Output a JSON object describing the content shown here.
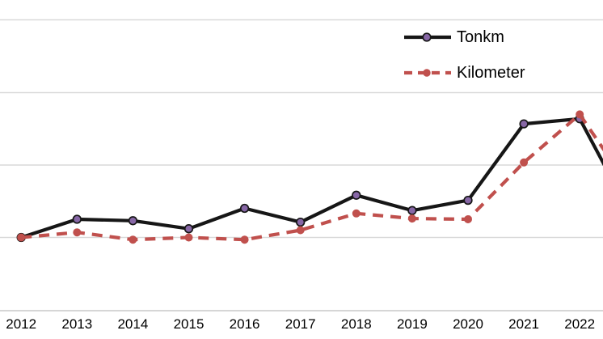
{
  "chart_data": {
    "type": "line",
    "title": "",
    "categories": [
      "2012",
      "2013",
      "2014",
      "2015",
      "2016",
      "2017",
      "2018",
      "2019",
      "2020",
      "2021",
      "2022"
    ],
    "y_axis": {
      "labels_visible": false,
      "unit_note": "index estimated from gridlines, 2012 = 100, one gridline step = 10",
      "ylim": [
        90,
        133.5
      ],
      "gridline_values": [
        100,
        110,
        120,
        130
      ]
    },
    "series": [
      {
        "name": "Tonkm",
        "line_style": "solid",
        "color": "#161616",
        "marker": "circle",
        "marker_color": "#8767a6",
        "marker_edge_color": "#161616",
        "values": [
          100,
          102.5,
          102.3,
          101.2,
          104.0,
          102.1,
          105.8,
          103.7,
          105.1,
          115.6,
          116.3
        ],
        "clipped_next_value": 101.9
      },
      {
        "name": "Kilometer",
        "line_style": "dashed",
        "color": "#c0504d",
        "marker": "dot",
        "marker_color": "#c0504d",
        "marker_edge_color": "#c0504d",
        "values": [
          100,
          100.7,
          99.7,
          100.0,
          99.7,
          101.0,
          103.3,
          102.6,
          102.5,
          110.3,
          116.9
        ],
        "clipped_next_value": 105.7
      }
    ],
    "legend": {
      "position": "top-right",
      "items": [
        "Tonkm",
        "Kilometer"
      ]
    },
    "grid": "horizontal",
    "gridline_color": "#d9d9d9",
    "axis_line_color": "#c9c9c9",
    "text_color": "#000000",
    "background_color": "#ffffff"
  }
}
